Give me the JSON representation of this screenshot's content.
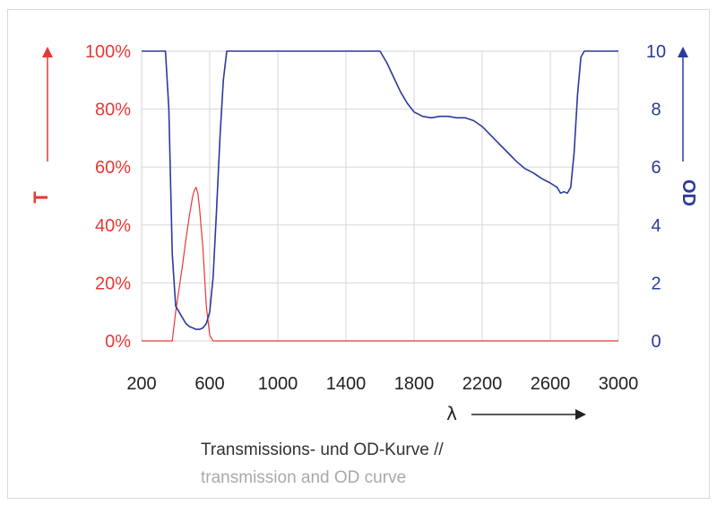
{
  "chart_data": {
    "type": "line",
    "x_ticks": [
      "200",
      "600",
      "1000",
      "1400",
      "1800",
      "2200",
      "2600",
      "3000"
    ],
    "xlim": [
      200,
      3000
    ],
    "xlabel": "λ",
    "y_left": {
      "label": "T",
      "ticks": [
        "0%",
        "20%",
        "40%",
        "60%",
        "80%",
        "100%"
      ],
      "ylim": [
        0,
        100
      ],
      "color": "#e53935"
    },
    "y_right": {
      "label": "OD",
      "ticks": [
        "0",
        "2",
        "4",
        "6",
        "8",
        "10"
      ],
      "ylim": [
        0,
        10
      ],
      "color": "#2b3a9c"
    },
    "grid": true,
    "series": [
      {
        "name": "T",
        "axis": "left",
        "color": "#e53935",
        "x": [
          200,
          380,
          400,
          420,
          440,
          460,
          480,
          500,
          510,
          520,
          530,
          540,
          560,
          580,
          600,
          620,
          640,
          3000
        ],
        "y": [
          0,
          0,
          10,
          18,
          26,
          35,
          43,
          50,
          52,
          53,
          51,
          46,
          32,
          12,
          2,
          0,
          0,
          0
        ]
      },
      {
        "name": "OD",
        "axis": "right",
        "color": "#2b3a9c",
        "x": [
          200,
          340,
          360,
          380,
          400,
          420,
          440,
          460,
          480,
          500,
          520,
          540,
          560,
          580,
          600,
          620,
          640,
          660,
          680,
          700,
          1600,
          1640,
          1680,
          1720,
          1760,
          1800,
          1850,
          1900,
          1950,
          2000,
          2050,
          2100,
          2150,
          2200,
          2250,
          2300,
          2350,
          2400,
          2450,
          2500,
          2550,
          2600,
          2640,
          2660,
          2680,
          2700,
          2720,
          2740,
          2760,
          2780,
          2800,
          2820,
          3000
        ],
        "y": [
          10,
          10,
          8,
          3,
          1.2,
          1.0,
          0.8,
          0.6,
          0.5,
          0.45,
          0.4,
          0.4,
          0.45,
          0.6,
          1.0,
          2.2,
          4.5,
          7.0,
          9.0,
          10,
          10,
          9.6,
          9.1,
          8.6,
          8.2,
          7.9,
          7.75,
          7.7,
          7.75,
          7.75,
          7.7,
          7.7,
          7.6,
          7.4,
          7.1,
          6.8,
          6.5,
          6.2,
          5.95,
          5.8,
          5.6,
          5.45,
          5.3,
          5.1,
          5.15,
          5.1,
          5.3,
          6.5,
          8.5,
          9.8,
          10,
          10,
          10
        ]
      }
    ]
  },
  "caption": {
    "line1": "Transmissions- und OD-Kurve //",
    "line2": "transmission and OD curve"
  }
}
